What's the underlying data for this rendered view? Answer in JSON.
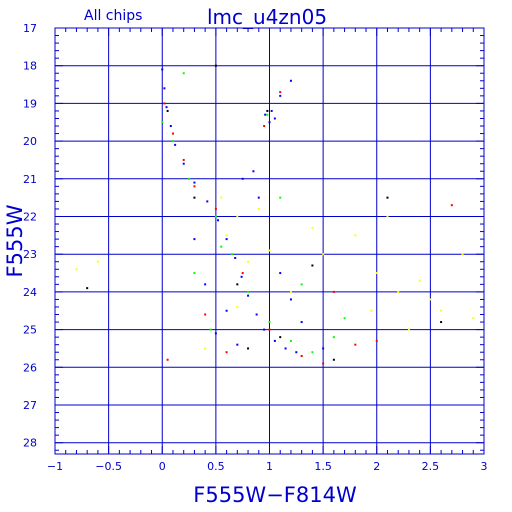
{
  "chart_data": {
    "type": "scatter",
    "title": "lmc_u4zn05",
    "subtitle": "All chips",
    "xlabel": "F555W−F814W",
    "ylabel": "F555W",
    "xlim": [
      -1,
      3
    ],
    "ylim": [
      28.3,
      17
    ],
    "y_inverted": true,
    "grid": true,
    "x_ticks": [
      -1,
      -0.5,
      0,
      0.5,
      1,
      1.5,
      2,
      2.5,
      3
    ],
    "x_tick_labels": [
      "−1",
      "−0.5",
      "0",
      "0.5",
      "1",
      "1.5",
      "2",
      "2.5",
      "3"
    ],
    "y_ticks": [
      17,
      18,
      19,
      20,
      21,
      22,
      23,
      24,
      25,
      26,
      27,
      28
    ],
    "y_tick_labels": [
      "17",
      "18",
      "19",
      "20",
      "21",
      "22",
      "23",
      "24",
      "25",
      "26",
      "27",
      "28"
    ],
    "colors": {
      "axis": "#0000cc",
      "blue": "#0000ff",
      "green": "#00ff00",
      "yellow": "#ffff00",
      "red": "#ff0000",
      "black": "#000000"
    },
    "series": [
      {
        "color": "blue",
        "points": [
          [
            0.0,
            18.1
          ],
          [
            0.02,
            18.6
          ],
          [
            0.04,
            19.1
          ],
          [
            0.08,
            19.6
          ],
          [
            0.12,
            20.1
          ],
          [
            0.2,
            20.6
          ],
          [
            0.3,
            21.1
          ],
          [
            0.42,
            21.6
          ],
          [
            0.52,
            22.1
          ],
          [
            0.6,
            22.6
          ],
          [
            0.68,
            23.1
          ],
          [
            0.74,
            23.6
          ],
          [
            0.8,
            24.1
          ],
          [
            0.88,
            24.6
          ],
          [
            0.95,
            25.0
          ],
          [
            1.05,
            25.3
          ],
          [
            1.15,
            25.5
          ],
          [
            1.25,
            25.6
          ],
          [
            0.96,
            19.3
          ],
          [
            1.02,
            19.2
          ],
          [
            1.05,
            19.4
          ],
          [
            1.0,
            19.5
          ],
          [
            1.1,
            18.8
          ],
          [
            1.2,
            18.4
          ],
          [
            0.75,
            21.0
          ],
          [
            0.85,
            20.8
          ],
          [
            0.9,
            21.5
          ],
          [
            1.1,
            23.5
          ],
          [
            1.2,
            24.2
          ],
          [
            1.3,
            24.8
          ],
          [
            0.6,
            24.5
          ],
          [
            0.5,
            25.1
          ],
          [
            0.7,
            25.4
          ],
          [
            0.4,
            23.8
          ],
          [
            0.3,
            22.6
          ],
          [
            1.5,
            25.5
          ]
        ]
      },
      {
        "color": "green",
        "points": [
          [
            0.0,
            19.5
          ],
          [
            0.1,
            20.0
          ],
          [
            0.25,
            21.0
          ],
          [
            0.5,
            22.0
          ],
          [
            0.65,
            23.0
          ],
          [
            0.8,
            24.0
          ],
          [
            1.0,
            24.8
          ],
          [
            1.2,
            25.3
          ],
          [
            0.98,
            19.3
          ],
          [
            1.4,
            25.6
          ],
          [
            1.6,
            25.2
          ],
          [
            0.45,
            25.0
          ],
          [
            0.3,
            23.5
          ],
          [
            1.1,
            21.5
          ],
          [
            1.7,
            24.7
          ],
          [
            0.2,
            18.2
          ],
          [
            0.55,
            22.8
          ],
          [
            1.3,
            23.8
          ]
        ]
      },
      {
        "color": "yellow",
        "points": [
          [
            0.6,
            22.5
          ],
          [
            0.7,
            22.0
          ],
          [
            0.55,
            21.5
          ],
          [
            0.8,
            23.2
          ],
          [
            1.5,
            23.0
          ],
          [
            1.8,
            22.5
          ],
          [
            2.0,
            23.5
          ],
          [
            2.2,
            24.0
          ],
          [
            2.5,
            24.2
          ],
          [
            2.8,
            23.0
          ],
          [
            1.95,
            24.5
          ],
          [
            2.3,
            25.0
          ],
          [
            0.7,
            24.4
          ],
          [
            1.0,
            22.9
          ],
          [
            2.1,
            22.0
          ],
          [
            2.9,
            24.7
          ],
          [
            -0.6,
            23.2
          ],
          [
            -0.8,
            23.4
          ],
          [
            0.4,
            25.5
          ],
          [
            1.4,
            22.3
          ],
          [
            2.4,
            23.7
          ],
          [
            2.6,
            24.5
          ],
          [
            0.9,
            21.8
          ],
          [
            1.2,
            24.0
          ]
        ]
      },
      {
        "color": "red",
        "points": [
          [
            0.02,
            19.0
          ],
          [
            0.1,
            19.8
          ],
          [
            0.2,
            20.5
          ],
          [
            0.5,
            21.8
          ],
          [
            0.75,
            23.5
          ],
          [
            1.0,
            25.0
          ],
          [
            1.3,
            25.7
          ],
          [
            1.5,
            25.9
          ],
          [
            1.1,
            18.7
          ],
          [
            0.4,
            24.6
          ],
          [
            0.6,
            25.6
          ],
          [
            1.8,
            25.4
          ],
          [
            0.95,
            19.6
          ],
          [
            0.3,
            21.2
          ],
          [
            1.6,
            24.0
          ],
          [
            2.0,
            25.3
          ],
          [
            2.7,
            21.7
          ],
          [
            0.05,
            25.8
          ]
        ]
      },
      {
        "color": "black",
        "points": [
          [
            0.05,
            19.2
          ],
          [
            0.3,
            21.5
          ],
          [
            0.7,
            23.8
          ],
          [
            1.1,
            25.2
          ],
          [
            0.98,
            19.2
          ],
          [
            1.6,
            25.8
          ],
          [
            2.1,
            21.5
          ],
          [
            2.6,
            24.8
          ],
          [
            -0.7,
            23.9
          ],
          [
            0.5,
            18.0
          ],
          [
            1.4,
            23.3
          ],
          [
            0.8,
            25.5
          ]
        ]
      }
    ]
  }
}
